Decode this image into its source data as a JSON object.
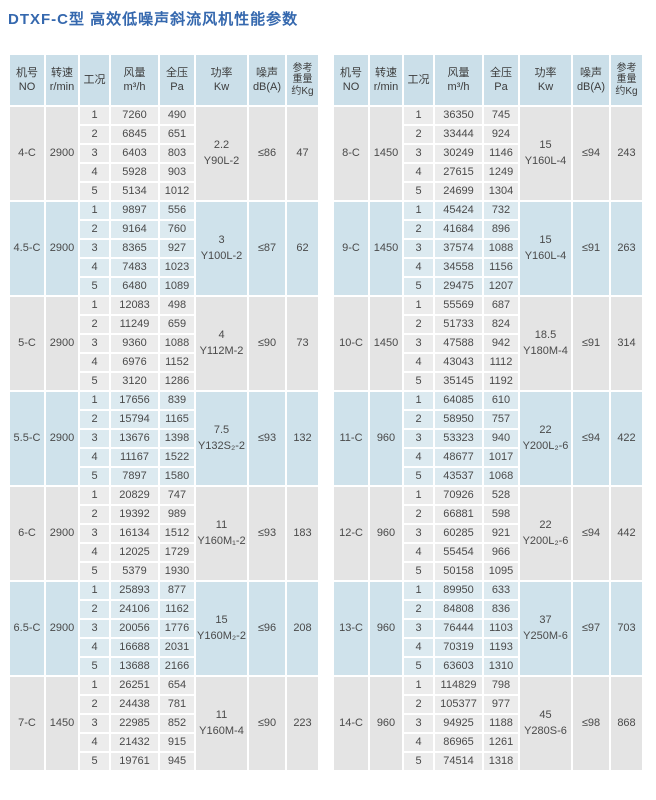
{
  "title": "DTXF-C型 高效低噪声斜流风机性能参数",
  "columns": [
    {
      "key": "model",
      "lines": [
        "机号",
        "NO"
      ]
    },
    {
      "key": "speed",
      "lines": [
        "转速",
        "r/min"
      ]
    },
    {
      "key": "cond",
      "lines": [
        "工况"
      ]
    },
    {
      "key": "flow",
      "lines": [
        "风量",
        "m³/h"
      ]
    },
    {
      "key": "press",
      "lines": [
        "全压",
        "Pa"
      ]
    },
    {
      "key": "power",
      "lines": [
        "功率",
        "Kw"
      ]
    },
    {
      "key": "noise",
      "lines": [
        "噪声",
        "dB(A)"
      ]
    },
    {
      "key": "weight",
      "lines": [
        "参考",
        "重量",
        "约Kg"
      ],
      "small": true
    }
  ],
  "tables": [
    {
      "groups": [
        {
          "model": "4-C",
          "speed": "2900",
          "power_kw": "2.2",
          "motor": "Y90L-2",
          "noise": "≤86",
          "weight": "47",
          "rows": [
            [
              "1",
              "7260",
              "490"
            ],
            [
              "2",
              "6845",
              "651"
            ],
            [
              "3",
              "6403",
              "803"
            ],
            [
              "4",
              "5928",
              "903"
            ],
            [
              "5",
              "5134",
              "1012"
            ]
          ]
        },
        {
          "model": "4.5-C",
          "speed": "2900",
          "power_kw": "3",
          "motor": "Y100L-2",
          "noise": "≤87",
          "weight": "62",
          "rows": [
            [
              "1",
              "9897",
              "556"
            ],
            [
              "2",
              "9164",
              "760"
            ],
            [
              "3",
              "8365",
              "927"
            ],
            [
              "4",
              "7483",
              "1023"
            ],
            [
              "5",
              "6480",
              "1089"
            ]
          ]
        },
        {
          "model": "5-C",
          "speed": "2900",
          "power_kw": "4",
          "motor": "Y112M-2",
          "noise": "≤90",
          "weight": "73",
          "rows": [
            [
              "1",
              "12083",
              "498"
            ],
            [
              "2",
              "11249",
              "659"
            ],
            [
              "3",
              "9360",
              "1088"
            ],
            [
              "4",
              "6976",
              "1152"
            ],
            [
              "5",
              "3120",
              "1286"
            ]
          ]
        },
        {
          "model": "5.5-C",
          "speed": "2900",
          "power_kw": "7.5",
          "motor": "Y132S₂-2",
          "noise": "≤93",
          "weight": "132",
          "rows": [
            [
              "1",
              "17656",
              "839"
            ],
            [
              "2",
              "15794",
              "1165"
            ],
            [
              "3",
              "13676",
              "1398"
            ],
            [
              "4",
              "11167",
              "1522"
            ],
            [
              "5",
              "7897",
              "1580"
            ]
          ]
        },
        {
          "model": "6-C",
          "speed": "2900",
          "power_kw": "11",
          "motor": "Y160M₁-2",
          "noise": "≤93",
          "weight": "183",
          "rows": [
            [
              "1",
              "20829",
              "747"
            ],
            [
              "2",
              "19392",
              "989"
            ],
            [
              "3",
              "16134",
              "1512"
            ],
            [
              "4",
              "12025",
              "1729"
            ],
            [
              "5",
              "5379",
              "1930"
            ]
          ]
        },
        {
          "model": "6.5-C",
          "speed": "2900",
          "power_kw": "15",
          "motor": "Y160M₂-2",
          "noise": "≤96",
          "weight": "208",
          "rows": [
            [
              "1",
              "25893",
              "877"
            ],
            [
              "2",
              "24106",
              "1162"
            ],
            [
              "3",
              "20056",
              "1776"
            ],
            [
              "4",
              "16688",
              "2031"
            ],
            [
              "5",
              "13688",
              "2166"
            ]
          ]
        },
        {
          "model": "7-C",
          "speed": "1450",
          "power_kw": "11",
          "motor": "Y160M-4",
          "noise": "≤90",
          "weight": "223",
          "rows": [
            [
              "1",
              "26251",
              "654"
            ],
            [
              "2",
              "24438",
              "781"
            ],
            [
              "3",
              "22985",
              "852"
            ],
            [
              "4",
              "21432",
              "915"
            ],
            [
              "5",
              "19761",
              "945"
            ]
          ]
        }
      ]
    },
    {
      "groups": [
        {
          "model": "8-C",
          "speed": "1450",
          "power_kw": "15",
          "motor": "Y160L-4",
          "noise": "≤94",
          "weight": "243",
          "rows": [
            [
              "1",
              "36350",
              "745"
            ],
            [
              "2",
              "33444",
              "924"
            ],
            [
              "3",
              "30249",
              "1146"
            ],
            [
              "4",
              "27615",
              "1249"
            ],
            [
              "5",
              "24699",
              "1304"
            ]
          ]
        },
        {
          "model": "9-C",
          "speed": "1450",
          "power_kw": "15",
          "motor": "Y160L-4",
          "noise": "≤91",
          "weight": "263",
          "rows": [
            [
              "1",
              "45424",
              "732"
            ],
            [
              "2",
              "41684",
              "896"
            ],
            [
              "3",
              "37574",
              "1088"
            ],
            [
              "4",
              "34558",
              "1156"
            ],
            [
              "5",
              "29475",
              "1207"
            ]
          ]
        },
        {
          "model": "10-C",
          "speed": "1450",
          "power_kw": "18.5",
          "motor": "Y180M-4",
          "noise": "≤91",
          "weight": "314",
          "rows": [
            [
              "1",
              "55569",
              "687"
            ],
            [
              "2",
              "51733",
              "824"
            ],
            [
              "3",
              "47588",
              "942"
            ],
            [
              "4",
              "43043",
              "1112"
            ],
            [
              "5",
              "35145",
              "1192"
            ]
          ]
        },
        {
          "model": "11-C",
          "speed": "960",
          "power_kw": "22",
          "motor": "Y200L₂-6",
          "noise": "≤94",
          "weight": "422",
          "rows": [
            [
              "1",
              "64085",
              "610"
            ],
            [
              "2",
              "58950",
              "757"
            ],
            [
              "3",
              "53323",
              "940"
            ],
            [
              "4",
              "48677",
              "1017"
            ],
            [
              "5",
              "43537",
              "1068"
            ]
          ]
        },
        {
          "model": "12-C",
          "speed": "960",
          "power_kw": "22",
          "motor": "Y200L₂-6",
          "noise": "≤94",
          "weight": "442",
          "rows": [
            [
              "1",
              "70926",
              "528"
            ],
            [
              "2",
              "66881",
              "598"
            ],
            [
              "3",
              "60285",
              "921"
            ],
            [
              "4",
              "55454",
              "966"
            ],
            [
              "5",
              "50158",
              "1095"
            ]
          ]
        },
        {
          "model": "13-C",
          "speed": "960",
          "power_kw": "37",
          "motor": "Y250M-6",
          "noise": "≤97",
          "weight": "703",
          "rows": [
            [
              "1",
              "89950",
              "633"
            ],
            [
              "2",
              "84808",
              "836"
            ],
            [
              "3",
              "76444",
              "1103"
            ],
            [
              "4",
              "70319",
              "1193"
            ],
            [
              "5",
              "63603",
              "1310"
            ]
          ]
        },
        {
          "model": "14-C",
          "speed": "960",
          "power_kw": "45",
          "motor": "Y280S-6",
          "noise": "≤98",
          "weight": "868",
          "rows": [
            [
              "1",
              "114829",
              "798"
            ],
            [
              "2",
              "105377",
              "977"
            ],
            [
              "3",
              "94925",
              "1188"
            ],
            [
              "4",
              "86965",
              "1261"
            ],
            [
              "5",
              "74514",
              "1318"
            ]
          ]
        }
      ]
    }
  ],
  "colors": {
    "title_blue": "#3568ae",
    "header_bg": "#cbdfe9",
    "group_gray_merged": "#e4e4e4",
    "group_gray_sub": "#ececec",
    "group_blue_merged": "#cfe2eb",
    "group_blue_sub": "#dceaf0",
    "text": "#4a4a4a"
  }
}
